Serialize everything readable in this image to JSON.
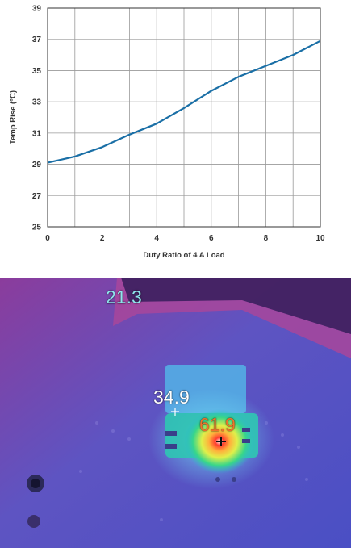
{
  "chart_data": {
    "type": "line",
    "title": "",
    "xlabel": "Duty Ratio of 4 A Load",
    "ylabel": "Temp Rise (°C)",
    "xlim": [
      0,
      10
    ],
    "ylim": [
      25,
      39
    ],
    "x_ticks": [
      "0",
      "2",
      "4",
      "6",
      "8",
      "10"
    ],
    "y_ticks": [
      "25",
      "27",
      "29",
      "31",
      "33",
      "35",
      "37",
      "39"
    ],
    "grid": true,
    "series": [
      {
        "color": "#1a6fa6",
        "x": [
          0,
          1,
          2,
          3,
          4,
          5,
          6,
          7,
          8,
          9,
          10
        ],
        "y": [
          29.1,
          29.5,
          30.1,
          30.9,
          31.6,
          32.6,
          33.7,
          34.6,
          35.3,
          36.0,
          36.9
        ]
      }
    ]
  },
  "thermal_image": {
    "readings": [
      {
        "value": "21.3",
        "color": "#8fe3ec"
      },
      {
        "value": "34.9",
        "color": "#ffffff"
      },
      {
        "value": "61.9",
        "color": "#f0732b"
      }
    ]
  }
}
